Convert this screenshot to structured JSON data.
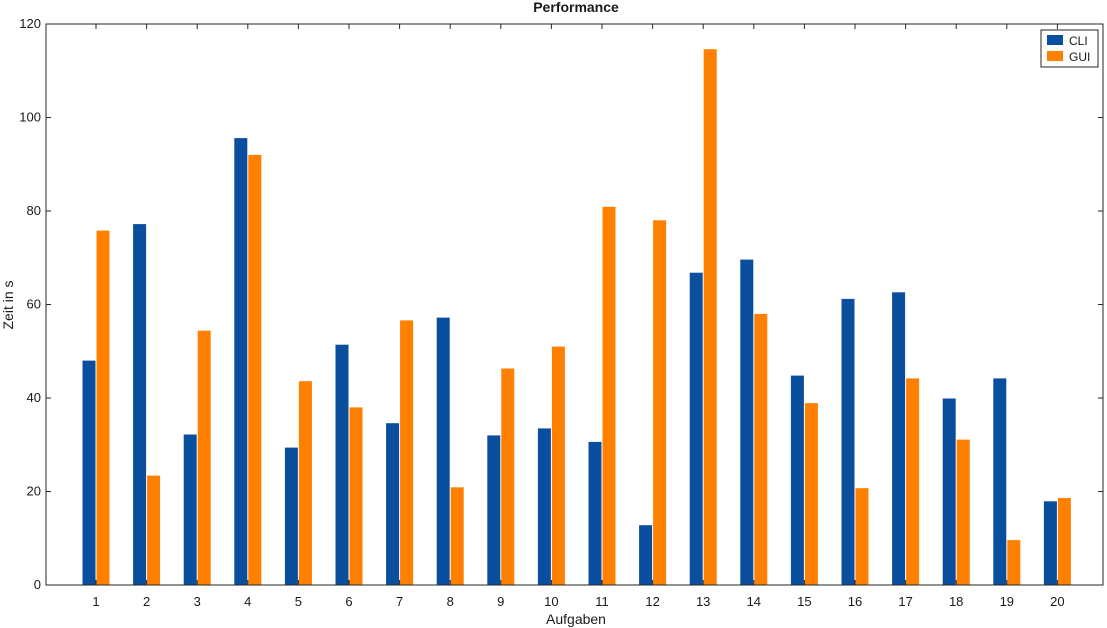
{
  "chart_data": {
    "type": "bar",
    "title": "Performance",
    "xlabel": "Aufgaben",
    "ylabel": "Zeit in s",
    "ylim": [
      0,
      120
    ],
    "yticks": [
      0,
      20,
      40,
      60,
      80,
      100,
      120
    ],
    "categories": [
      "1",
      "2",
      "3",
      "4",
      "5",
      "6",
      "7",
      "8",
      "9",
      "10",
      "11",
      "12",
      "13",
      "14",
      "15",
      "16",
      "17",
      "18",
      "19",
      "20"
    ],
    "grid": false,
    "legend_position": "top-right",
    "series": [
      {
        "name": "CLI",
        "color": "#0a4e9e",
        "values": [
          48.0,
          77.2,
          32.2,
          95.6,
          29.4,
          51.4,
          34.6,
          57.2,
          32.0,
          33.5,
          30.6,
          12.8,
          66.8,
          69.6,
          44.8,
          61.2,
          62.6,
          39.9,
          44.2,
          17.9
        ]
      },
      {
        "name": "GUI",
        "color": "#ff8000",
        "values": [
          75.8,
          23.4,
          54.4,
          92.0,
          43.6,
          38.0,
          56.6,
          20.9,
          46.3,
          51.0,
          80.9,
          78.0,
          114.6,
          58.0,
          38.9,
          20.7,
          44.2,
          31.1,
          9.6,
          18.6
        ]
      }
    ]
  }
}
